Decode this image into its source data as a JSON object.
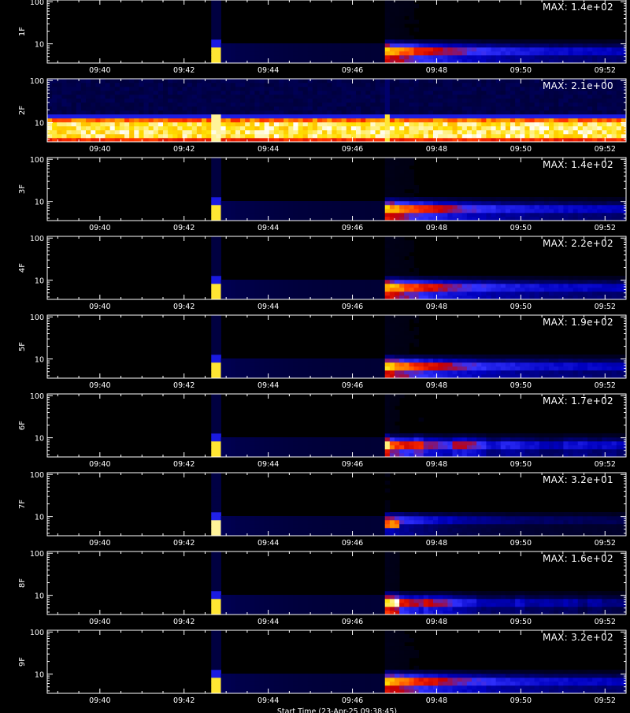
{
  "chart_data": {
    "type": "heatmap",
    "x_axis": {
      "range": [
        "09:38:45",
        "09:52:30"
      ],
      "tick_labels": [
        "09:40",
        "09:42",
        "09:44",
        "09:46",
        "09:48",
        "09:50",
        "09:52"
      ],
      "tick_times": [
        "09:40",
        "09:42",
        "09:44",
        "09:46",
        "09:48",
        "09:50",
        "09:52"
      ]
    },
    "y_axis": {
      "scale": "log",
      "range": [
        3.5,
        110
      ],
      "tick_labels": [
        "10",
        "100"
      ],
      "tick_values": [
        10,
        100
      ]
    },
    "colormap": [
      "#000000",
      "#00004a",
      "#0000c0",
      "#3232ff",
      "#c80000",
      "#ff3000",
      "#ff9000",
      "#ffe000",
      "#ffffff"
    ],
    "panels": [
      {
        "label": "1F",
        "max_label": "MAX: 1.4e+02"
      },
      {
        "label": "2F",
        "max_label": "MAX: 2.1e+00"
      },
      {
        "label": "3F",
        "max_label": "MAX: 1.4e+02"
      },
      {
        "label": "4F",
        "max_label": "MAX: 2.2e+02"
      },
      {
        "label": "5F",
        "max_label": "MAX: 1.9e+02"
      },
      {
        "label": "6F",
        "max_label": "MAX: 1.7e+02"
      },
      {
        "label": "7F",
        "max_label": "MAX: 3.2e+01"
      },
      {
        "label": "8F",
        "max_label": "MAX: 1.6e+02"
      },
      {
        "label": "9F",
        "max_label": "MAX: 3.2e+02"
      }
    ],
    "xlabel": "Start Time (23-Apr-25 09:38:45)",
    "events": [
      "09:42:46",
      "09:46:50"
    ]
  }
}
